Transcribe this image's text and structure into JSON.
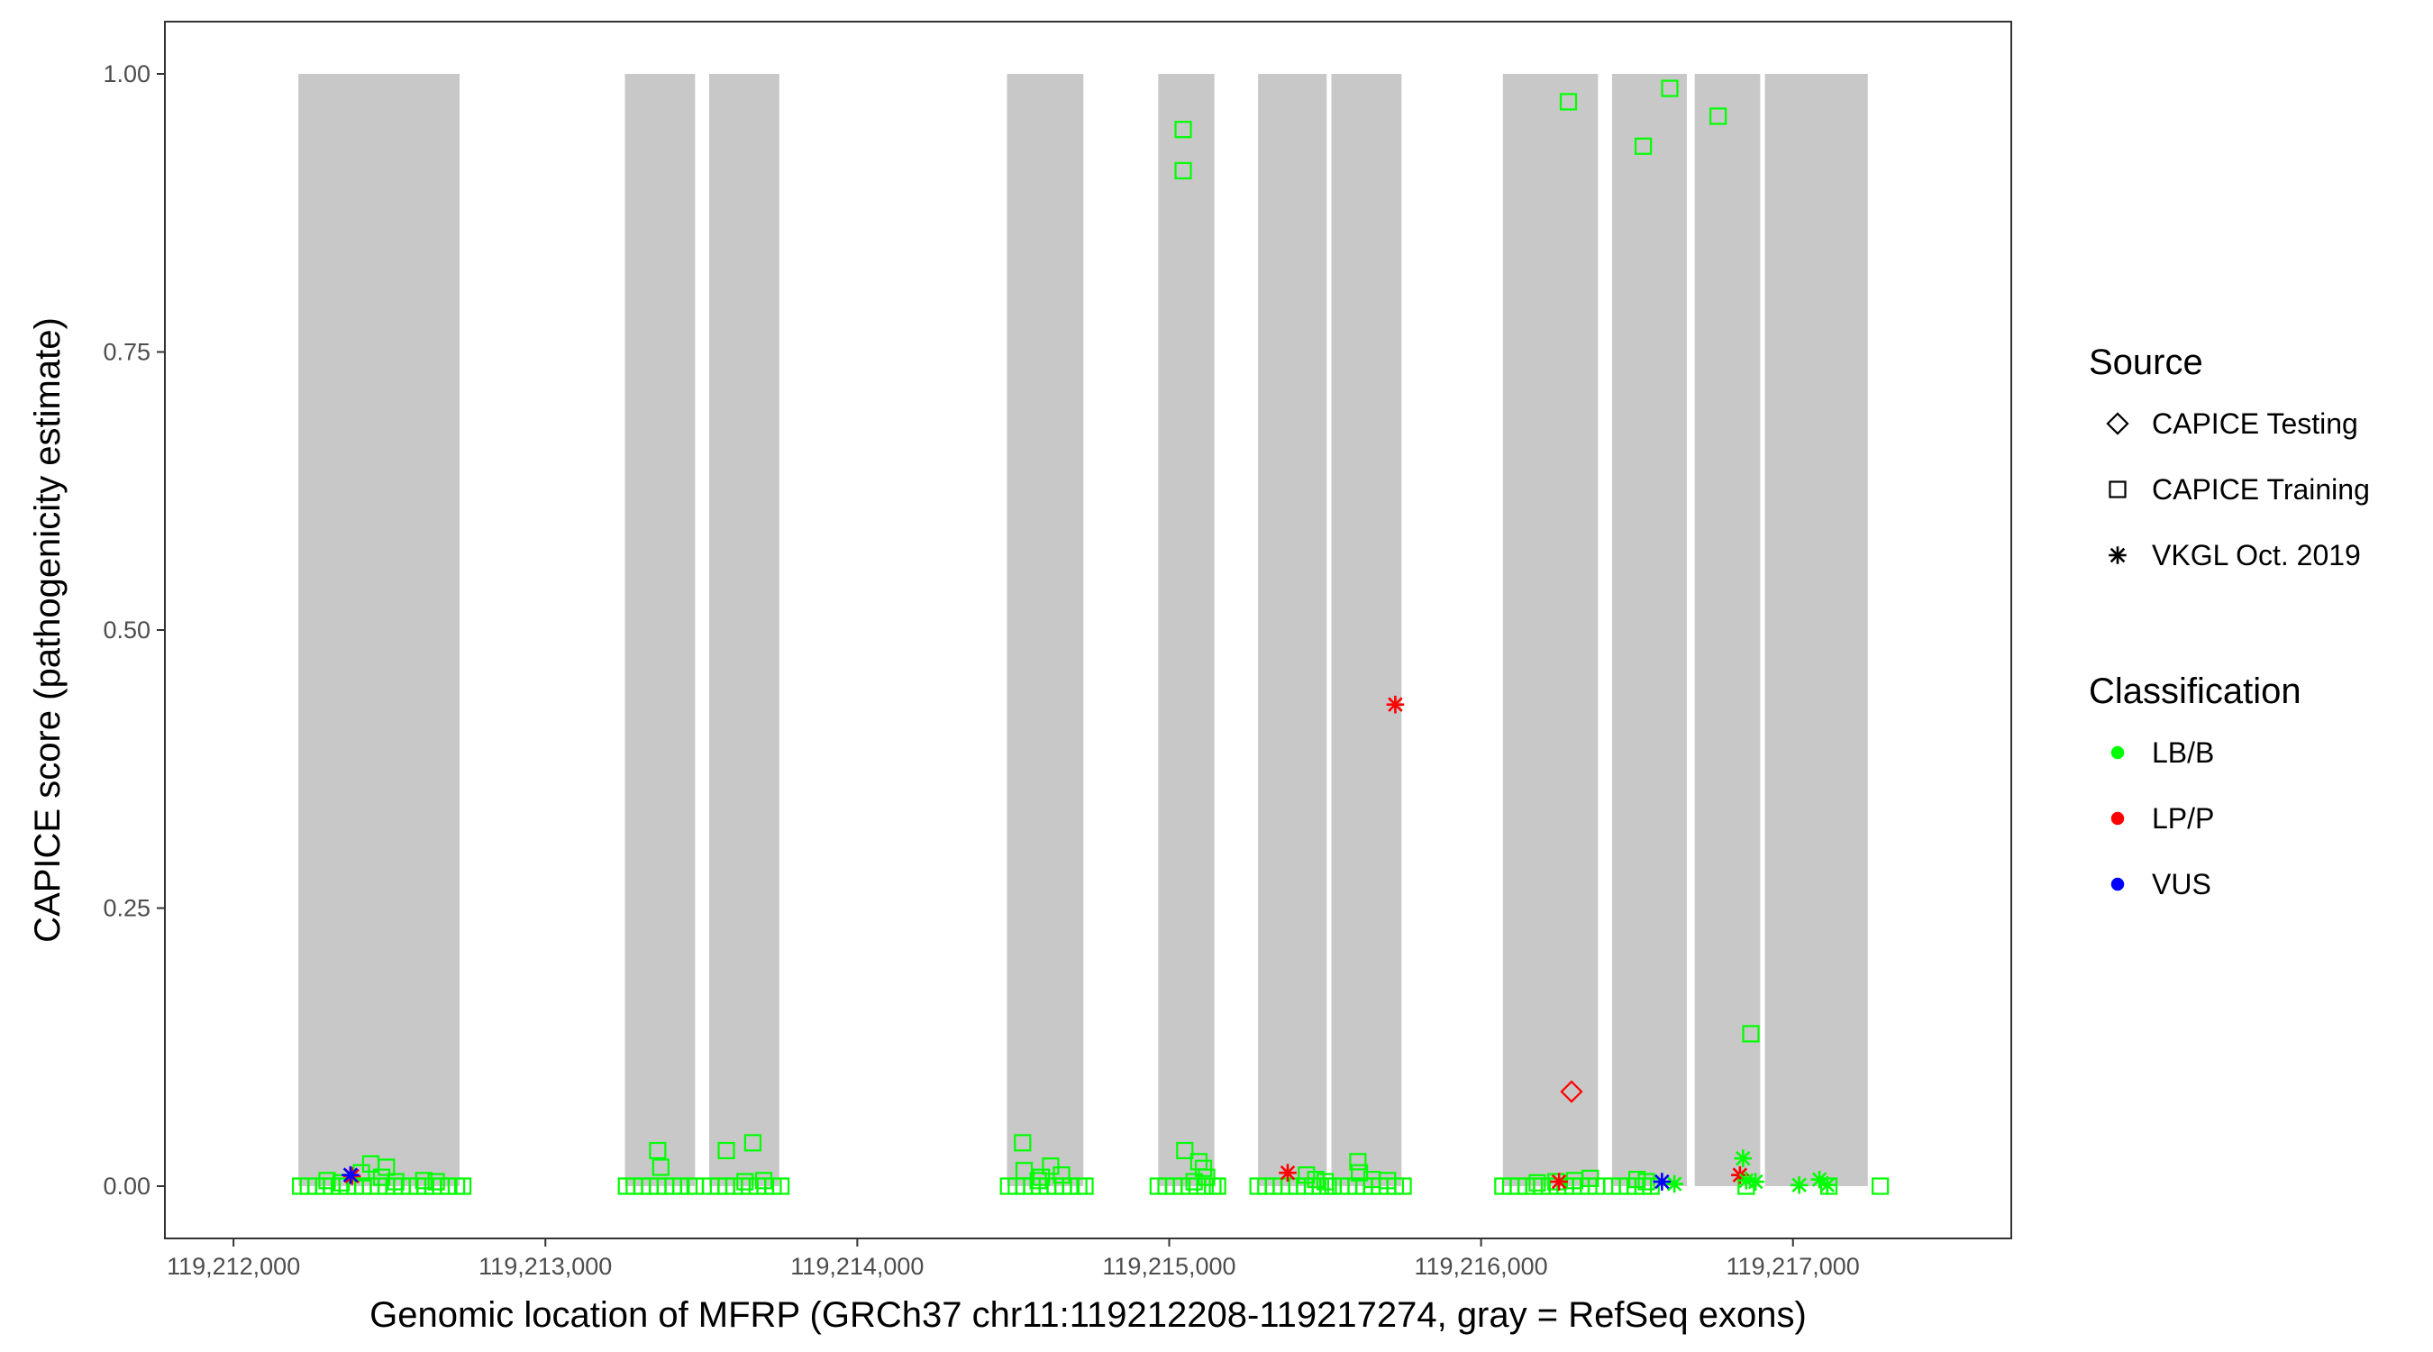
{
  "chart_data": {
    "type": "scatter",
    "title": "",
    "xlabel": "Genomic location of MFRP (GRCh37 chr11:119212208-119217274, gray = RefSeq exons)",
    "ylabel": "CAPICE score (pathogenicity estimate)",
    "xlim": [
      119211780,
      119217700
    ],
    "ylim": [
      -0.047,
      1.047
    ],
    "x_ticks": [
      119212000,
      119213000,
      119214000,
      119215000,
      119216000,
      119217000
    ],
    "x_tick_labels": [
      "119,212,000",
      "119,213,000",
      "119,214,000",
      "119,215,000",
      "119,216,000",
      "119,217,000"
    ],
    "y_ticks": [
      0,
      0.25,
      0.5,
      0.75,
      1.0
    ],
    "y_tick_labels": [
      "0.00",
      "0.25",
      "0.50",
      "0.75",
      "1.00"
    ],
    "grid": false,
    "exons": [
      [
        119212208,
        119212725
      ],
      [
        119213255,
        119213480
      ],
      [
        119213525,
        119213750
      ],
      [
        119214480,
        119214725
      ],
      [
        119214965,
        119215145
      ],
      [
        119215285,
        119215505
      ],
      [
        119215520,
        119215745
      ],
      [
        119216070,
        119216375
      ],
      [
        119216420,
        119216660
      ],
      [
        119216685,
        119216895
      ],
      [
        119216910,
        119217240
      ]
    ],
    "exon_color": "#c8c8c8",
    "colors": {
      "LB/B": "#00ff00",
      "LP/P": "#ff0000",
      "VUS": "#0000ff"
    },
    "legend": {
      "position": "right",
      "source_title": "Source",
      "source_items": [
        {
          "label": "CAPICE Testing",
          "shape": "diamond"
        },
        {
          "label": "CAPICE Training",
          "shape": "square"
        },
        {
          "label": "VKGL Oct. 2019",
          "shape": "asterisk"
        }
      ],
      "class_title": "Classification",
      "class_items": [
        {
          "label": "LB/B",
          "color": "#00ff00"
        },
        {
          "label": "LP/P",
          "color": "#ff0000"
        },
        {
          "label": "VUS",
          "color": "#0000ff"
        }
      ]
    },
    "series": [
      {
        "source": "CAPICE Training",
        "classification": "LB/B",
        "shape": "square",
        "points": [
          [
            119212215,
            0
          ],
          [
            119212240,
            0
          ],
          [
            119212265,
            0
          ],
          [
            119212290,
            0
          ],
          [
            119212315,
            0
          ],
          [
            119212340,
            0
          ],
          [
            119212365,
            0
          ],
          [
            119212390,
            0
          ],
          [
            119212415,
            0
          ],
          [
            119212440,
            0
          ],
          [
            119212465,
            0
          ],
          [
            119212490,
            0
          ],
          [
            119212515,
            0
          ],
          [
            119212540,
            0
          ],
          [
            119212565,
            0
          ],
          [
            119212590,
            0
          ],
          [
            119212615,
            0
          ],
          [
            119212640,
            0
          ],
          [
            119212665,
            0
          ],
          [
            119212690,
            0
          ],
          [
            119212715,
            0
          ],
          [
            119212735,
            0
          ],
          [
            119212300,
            0.005
          ],
          [
            119212345,
            0.003
          ],
          [
            119212410,
            0.012
          ],
          [
            119212440,
            0.02
          ],
          [
            119212475,
            0.008
          ],
          [
            119212490,
            0.017
          ],
          [
            119212520,
            0.004
          ],
          [
            119212610,
            0.005
          ],
          [
            119212650,
            0.004
          ],
          [
            119213260,
            0
          ],
          [
            119213285,
            0
          ],
          [
            119213310,
            0
          ],
          [
            119213335,
            0
          ],
          [
            119213360,
            0
          ],
          [
            119213385,
            0
          ],
          [
            119213410,
            0
          ],
          [
            119213435,
            0
          ],
          [
            119213460,
            0
          ],
          [
            119213480,
            0
          ],
          [
            119213360,
            0.032
          ],
          [
            119213370,
            0.017
          ],
          [
            119213530,
            0
          ],
          [
            119213555,
            0
          ],
          [
            119213580,
            0
          ],
          [
            119213605,
            0
          ],
          [
            119213630,
            0
          ],
          [
            119213655,
            0
          ],
          [
            119213680,
            0
          ],
          [
            119213705,
            0
          ],
          [
            119213730,
            0
          ],
          [
            119213755,
            0
          ],
          [
            119213580,
            0.032
          ],
          [
            119213665,
            0.039
          ],
          [
            119213640,
            0.004
          ],
          [
            119213700,
            0.005
          ],
          [
            119214485,
            0
          ],
          [
            119214510,
            0
          ],
          [
            119214535,
            0
          ],
          [
            119214560,
            0
          ],
          [
            119214585,
            0
          ],
          [
            119214610,
            0
          ],
          [
            119214635,
            0
          ],
          [
            119214660,
            0
          ],
          [
            119214685,
            0
          ],
          [
            119214710,
            0
          ],
          [
            119214730,
            0
          ],
          [
            119214530,
            0.039
          ],
          [
            119214535,
            0.014
          ],
          [
            119214590,
            0.008
          ],
          [
            119214620,
            0.018
          ],
          [
            119214655,
            0.01
          ],
          [
            119214580,
            0.005
          ],
          [
            119214965,
            0
          ],
          [
            119214990,
            0
          ],
          [
            119215015,
            0
          ],
          [
            119215040,
            0
          ],
          [
            119215065,
            0
          ],
          [
            119215090,
            0
          ],
          [
            119215115,
            0
          ],
          [
            119215140,
            0
          ],
          [
            119215155,
            0
          ],
          [
            119215050,
            0.032
          ],
          [
            119215095,
            0.022
          ],
          [
            119215110,
            0.016
          ],
          [
            119215120,
            0.008
          ],
          [
            119215080,
            0.004
          ],
          [
            119215285,
            0
          ],
          [
            119215310,
            0
          ],
          [
            119215335,
            0
          ],
          [
            119215360,
            0
          ],
          [
            119215385,
            0
          ],
          [
            119215410,
            0
          ],
          [
            119215435,
            0
          ],
          [
            119215460,
            0
          ],
          [
            119215485,
            0
          ],
          [
            119215510,
            0
          ],
          [
            119215440,
            0.01
          ],
          [
            119215470,
            0.006
          ],
          [
            119215500,
            0.004
          ],
          [
            119215525,
            0
          ],
          [
            119215550,
            0
          ],
          [
            119215575,
            0
          ],
          [
            119215600,
            0
          ],
          [
            119215625,
            0
          ],
          [
            119215650,
            0
          ],
          [
            119215675,
            0
          ],
          [
            119215700,
            0
          ],
          [
            119215725,
            0
          ],
          [
            119215750,
            0
          ],
          [
            119215605,
            0.022
          ],
          [
            119215610,
            0.012
          ],
          [
            119215650,
            0.006
          ],
          [
            119215700,
            0.005
          ],
          [
            119216070,
            0
          ],
          [
            119216095,
            0
          ],
          [
            119216120,
            0
          ],
          [
            119216145,
            0
          ],
          [
            119216170,
            0
          ],
          [
            119216195,
            0
          ],
          [
            119216220,
            0
          ],
          [
            119216245,
            0
          ],
          [
            119216270,
            0
          ],
          [
            119216295,
            0
          ],
          [
            119216320,
            0
          ],
          [
            119216345,
            0
          ],
          [
            119216370,
            0
          ],
          [
            119216180,
            0.003
          ],
          [
            119216240,
            0.004
          ],
          [
            119216300,
            0.005
          ],
          [
            119216350,
            0.007
          ],
          [
            119216420,
            0
          ],
          [
            119216445,
            0
          ],
          [
            119216470,
            0
          ],
          [
            119216495,
            0
          ],
          [
            119216520,
            0
          ],
          [
            119216545,
            0
          ],
          [
            119216500,
            0.006
          ],
          [
            119216530,
            0.004
          ],
          [
            119216850,
            0
          ],
          [
            119217115,
            0
          ],
          [
            119217280,
            0
          ],
          [
            119215045,
            0.95
          ],
          [
            119215045,
            0.913
          ],
          [
            119216280,
            0.975
          ],
          [
            119216520,
            0.935
          ],
          [
            119216605,
            0.987
          ],
          [
            119216760,
            0.962
          ],
          [
            119216865,
            0.137
          ]
        ]
      },
      {
        "source": "CAPICE Testing",
        "classification": "LP/P",
        "shape": "diamond",
        "points": [
          [
            119216290,
            0.085
          ]
        ]
      },
      {
        "source": "VKGL Oct. 2019",
        "classification": "LP/P",
        "shape": "asterisk",
        "points": [
          [
            119212380,
            0.009
          ],
          [
            119215380,
            0.012
          ],
          [
            119215725,
            0.433
          ],
          [
            119216250,
            0.004
          ],
          [
            119216830,
            0.01
          ]
        ]
      },
      {
        "source": "VKGL Oct. 2019",
        "classification": "LB/B",
        "shape": "asterisk",
        "points": [
          [
            119216620,
            0.002
          ],
          [
            119216840,
            0.025
          ],
          [
            119216850,
            0.005
          ],
          [
            119216880,
            0.004
          ],
          [
            119217020,
            0.001
          ],
          [
            119217085,
            0.006
          ],
          [
            119217110,
            0.001
          ]
        ]
      },
      {
        "source": "VKGL Oct. 2019",
        "classification": "VUS",
        "shape": "asterisk",
        "points": [
          [
            119212375,
            0.01
          ],
          [
            119216580,
            0.004
          ]
        ]
      }
    ]
  }
}
